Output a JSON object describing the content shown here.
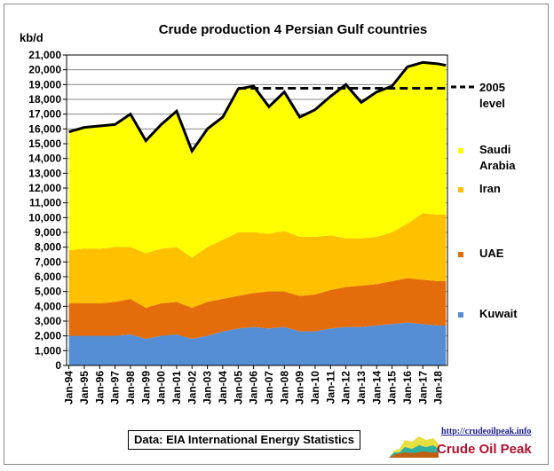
{
  "chart_data": {
    "type": "area",
    "title": "Crude  production 4 Persian Gulf countries",
    "ylabel": "kb/d",
    "ylim": [
      0,
      21000
    ],
    "ystep": 1000,
    "grid": true,
    "xlim": [
      1993.85,
      2018.6
    ],
    "x_tick_labels": [
      "Jan-94",
      "Jan-95",
      "Jan-96",
      "Jan-97",
      "Jan-98",
      "Jan-99",
      "Jan-00",
      "Jan-01",
      "Jan-02",
      "Jan-03",
      "Jan-04",
      "Jan-05",
      "Jan-06",
      "Jan-07",
      "Jan-08",
      "Jan-09",
      "Jan-10",
      "Jan-11",
      "Jan-12",
      "Jan-13",
      "Jan-14",
      "Jan-15",
      "Jan-16",
      "Jan-17",
      "Jan-18"
    ],
    "x": [
      1994,
      1995,
      1996,
      1997,
      1998,
      1999,
      2000,
      2001,
      2002,
      2003,
      2004,
      2005,
      2006,
      2007,
      2008,
      2009,
      2010,
      2011,
      2012,
      2013,
      2014,
      2015,
      2016,
      2017,
      2018,
      2018.5
    ],
    "series": [
      {
        "name": "Kuwait",
        "color": "#558ED5",
        "values": [
          2000,
          2000,
          2000,
          2000,
          2100,
          1800,
          2000,
          2100,
          1800,
          2000,
          2300,
          2500,
          2600,
          2500,
          2600,
          2300,
          2300,
          2500,
          2600,
          2600,
          2700,
          2800,
          2900,
          2800,
          2700,
          2700
        ]
      },
      {
        "name": "UAE",
        "color": "#E46C0A",
        "values": [
          2200,
          2200,
          2200,
          2300,
          2400,
          2100,
          2200,
          2200,
          2100,
          2300,
          2200,
          2200,
          2300,
          2500,
          2400,
          2400,
          2500,
          2600,
          2700,
          2800,
          2800,
          2900,
          3000,
          3000,
          3000,
          3000
        ]
      },
      {
        "name": "Iran",
        "color": "#FFC000",
        "values": [
          3600,
          3700,
          3700,
          3700,
          3500,
          3700,
          3700,
          3700,
          3400,
          3700,
          4000,
          4300,
          4100,
          3900,
          4100,
          4000,
          3900,
          3700,
          3300,
          3200,
          3200,
          3300,
          3700,
          4500,
          4500,
          4500
        ]
      },
      {
        "name": "Saudi Arabia",
        "color": "#FFFF00",
        "values": [
          8000,
          8200,
          8300,
          8300,
          9000,
          7600,
          8400,
          9200,
          7200,
          8000,
          8300,
          9700,
          9900,
          8600,
          9400,
          8100,
          8600,
          9400,
          10400,
          9200,
          9800,
          9900,
          10600,
          10200,
          10200,
          10100
        ]
      }
    ],
    "reference_line": {
      "name": "2005 level",
      "value": 18750,
      "from": 2005
    },
    "legend": {
      "placement": "right",
      "items": [
        "2005 level",
        "Saudi Arabia",
        "Iran",
        "UAE",
        "Kuwait"
      ]
    },
    "annotations": {
      "source": "Data: EIA International Energy Statistics"
    }
  },
  "logo": {
    "url": "http://crudeoilpeak.info",
    "name": "Crude Oil Peak"
  }
}
